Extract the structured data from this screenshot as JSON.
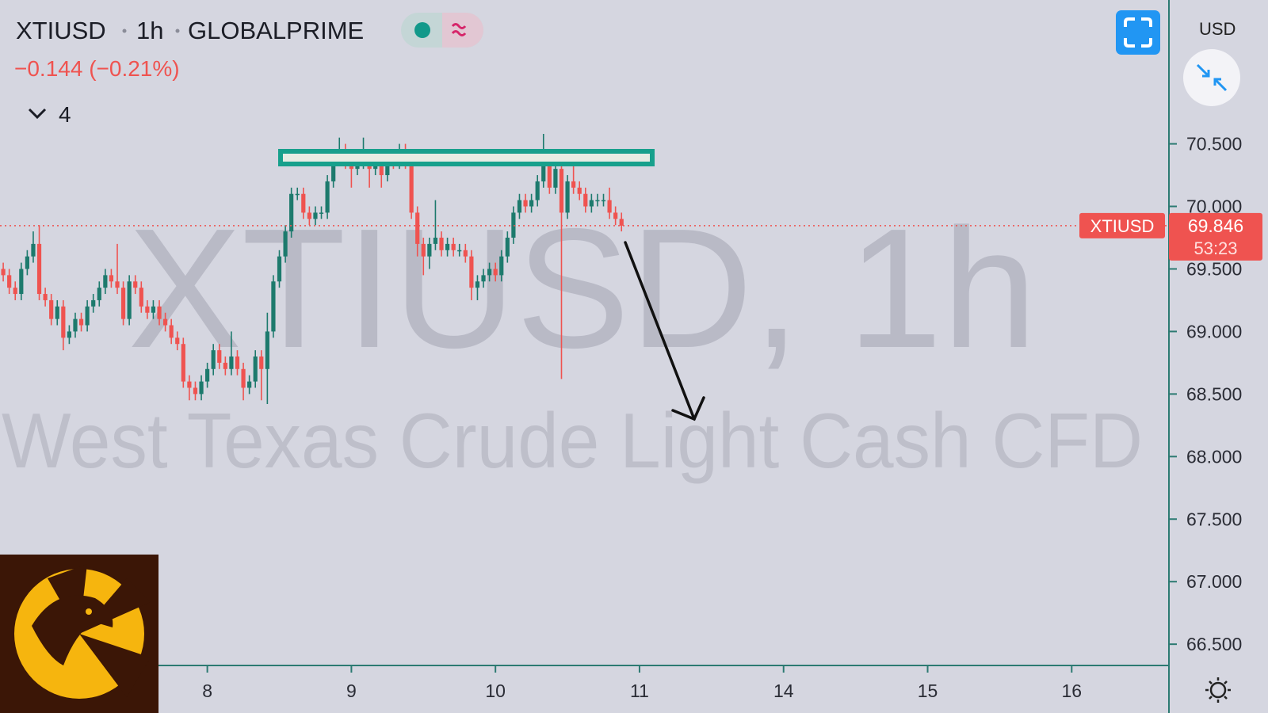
{
  "chart_data": {
    "type": "candlestick",
    "symbol": "XTIUSD",
    "interval": "1h",
    "broker": "GLOBALPRIME",
    "change": "−0.144 (−0.21%)",
    "indicator_count": 4,
    "watermark_title": "XTIUSD, 1h",
    "watermark_subtitle": "West Texas Crude Light Cash CFD",
    "currency": "USD",
    "countdown": "53:23",
    "up_color": "#1d7a6d",
    "down_color": "#ef5350",
    "open": [
      69.5,
      69.45,
      69.35,
      69.3,
      69.5,
      69.6,
      69.7,
      69.3,
      69.25,
      69.1,
      69.2,
      68.95,
      69.0,
      69.1,
      69.05,
      69.2,
      69.25,
      69.35,
      69.45,
      69.4,
      69.35,
      69.1,
      69.4,
      69.35,
      69.2,
      69.15,
      69.2,
      69.1,
      69.05,
      68.95,
      68.9,
      68.6,
      68.55,
      68.5,
      68.6,
      68.7,
      68.85,
      68.75,
      68.7,
      68.8,
      68.7,
      68.55,
      68.6,
      68.8,
      68.7,
      69.0,
      69.4,
      69.6,
      69.8,
      70.1,
      70.1,
      69.95,
      69.9,
      69.95,
      69.95,
      70.2,
      70.4,
      70.45,
      70.35,
      70.3,
      70.35,
      70.4,
      70.3,
      70.35,
      70.25,
      70.4,
      70.35,
      70.4,
      70.35,
      69.95,
      69.7,
      69.6,
      69.7,
      69.75,
      69.65,
      69.7,
      69.65,
      69.65,
      69.6,
      69.35,
      69.4,
      69.45,
      69.5,
      69.45,
      69.6,
      69.75,
      69.95,
      70.05,
      70.0,
      70.05,
      70.2,
      70.35,
      70.15,
      70.3,
      69.95,
      70.2,
      70.15,
      70.1,
      70.0,
      70.05,
      70.05,
      70.05,
      69.95,
      69.9
    ],
    "high": [
      69.55,
      69.5,
      69.4,
      69.55,
      69.65,
      69.8,
      69.85,
      69.35,
      69.3,
      69.25,
      69.25,
      69.05,
      69.15,
      69.15,
      69.25,
      69.3,
      69.4,
      69.5,
      69.5,
      69.7,
      69.4,
      69.45,
      69.45,
      69.4,
      69.25,
      69.25,
      69.25,
      69.15,
      69.1,
      69.0,
      68.95,
      68.65,
      68.6,
      68.65,
      68.75,
      68.9,
      68.9,
      68.8,
      69.0,
      68.85,
      68.75,
      68.65,
      68.85,
      68.85,
      69.15,
      69.45,
      69.65,
      69.85,
      70.15,
      70.15,
      70.15,
      70.0,
      70.0,
      70.0,
      70.25,
      70.45,
      70.55,
      70.5,
      70.4,
      70.4,
      70.55,
      70.45,
      70.4,
      70.4,
      70.45,
      70.45,
      70.5,
      70.5,
      70.4,
      70.0,
      69.75,
      69.75,
      70.05,
      69.8,
      69.75,
      69.75,
      69.7,
      69.7,
      69.65,
      69.45,
      69.5,
      69.55,
      69.55,
      69.65,
      69.8,
      70.0,
      70.1,
      70.1,
      70.1,
      70.25,
      70.58,
      70.4,
      70.4,
      70.35,
      70.25,
      70.4,
      70.2,
      70.15,
      70.1,
      70.1,
      70.1,
      70.15,
      70.0,
      69.95
    ],
    "low": [
      69.4,
      69.3,
      69.25,
      69.25,
      69.45,
      69.55,
      69.25,
      69.2,
      69.05,
      69.05,
      68.85,
      68.9,
      68.95,
      69.0,
      69.0,
      69.15,
      69.2,
      69.3,
      69.35,
      69.3,
      69.05,
      69.05,
      69.3,
      69.15,
      69.1,
      69.1,
      69.05,
      69.0,
      68.9,
      68.85,
      68.55,
      68.45,
      68.45,
      68.45,
      68.55,
      68.65,
      68.7,
      68.65,
      68.65,
      68.65,
      68.45,
      68.5,
      68.55,
      68.45,
      68.42,
      68.95,
      69.35,
      69.55,
      69.75,
      70.05,
      69.9,
      69.85,
      69.85,
      69.9,
      69.9,
      70.15,
      70.35,
      70.3,
      70.15,
      70.25,
      70.3,
      70.15,
      70.25,
      70.15,
      70.2,
      70.3,
      70.3,
      70.3,
      69.9,
      69.6,
      69.45,
      69.5,
      69.65,
      69.6,
      69.6,
      69.6,
      69.6,
      69.55,
      69.25,
      69.25,
      69.35,
      69.4,
      69.4,
      69.4,
      69.55,
      69.7,
      69.9,
      69.95,
      69.95,
      70.0,
      70.15,
      70.1,
      70.1,
      68.62,
      69.9,
      70.1,
      70.05,
      69.95,
      69.95,
      70.0,
      70.0,
      69.9,
      69.85,
      69.8
    ],
    "close": [
      69.45,
      69.35,
      69.3,
      69.5,
      69.6,
      69.7,
      69.3,
      69.25,
      69.1,
      69.2,
      68.95,
      69.0,
      69.1,
      69.05,
      69.2,
      69.25,
      69.35,
      69.45,
      69.4,
      69.35,
      69.1,
      69.4,
      69.35,
      69.2,
      69.15,
      69.2,
      69.1,
      69.05,
      68.95,
      68.9,
      68.6,
      68.55,
      68.5,
      68.6,
      68.7,
      68.85,
      68.75,
      68.7,
      68.8,
      68.7,
      68.55,
      68.6,
      68.8,
      68.7,
      69.0,
      69.4,
      69.6,
      69.8,
      70.1,
      70.1,
      69.95,
      69.9,
      69.95,
      69.95,
      70.2,
      70.4,
      70.45,
      70.35,
      70.3,
      70.35,
      70.4,
      70.3,
      70.35,
      70.25,
      70.4,
      70.35,
      70.4,
      70.35,
      69.95,
      69.7,
      69.6,
      69.7,
      69.75,
      69.65,
      69.7,
      69.65,
      69.65,
      69.6,
      69.35,
      69.4,
      69.45,
      69.5,
      69.45,
      69.6,
      69.75,
      69.95,
      70.05,
      70.0,
      70.05,
      70.2,
      70.35,
      70.15,
      70.3,
      69.95,
      70.2,
      70.15,
      70.1,
      70.0,
      70.05,
      70.05,
      70.05,
      69.95,
      69.9,
      69.846
    ],
    "xlim": [
      -0.54,
      194.2
    ],
    "xticks": [
      {
        "value": 34,
        "label": "8"
      },
      {
        "value": 58,
        "label": "9"
      },
      {
        "value": 82,
        "label": "10"
      },
      {
        "value": 106,
        "label": "11"
      },
      {
        "value": 130,
        "label": "14"
      },
      {
        "value": 154,
        "label": "15"
      },
      {
        "value": 178,
        "label": "16"
      }
    ],
    "ylim": [
      66.33,
      71.65
    ],
    "yticks": [
      {
        "value": 66.5,
        "label": "66.500"
      },
      {
        "value": 67,
        "label": "67.000"
      },
      {
        "value": 67.5,
        "label": "67.500"
      },
      {
        "value": 68,
        "label": "68.000"
      },
      {
        "value": 68.5,
        "label": "68.500"
      },
      {
        "value": 69,
        "label": "69.000"
      },
      {
        "value": 69.5,
        "label": "69.500"
      },
      {
        "value": 70,
        "label": "70.000"
      },
      {
        "value": 70.5,
        "label": "70.500"
      }
    ]
  }
}
